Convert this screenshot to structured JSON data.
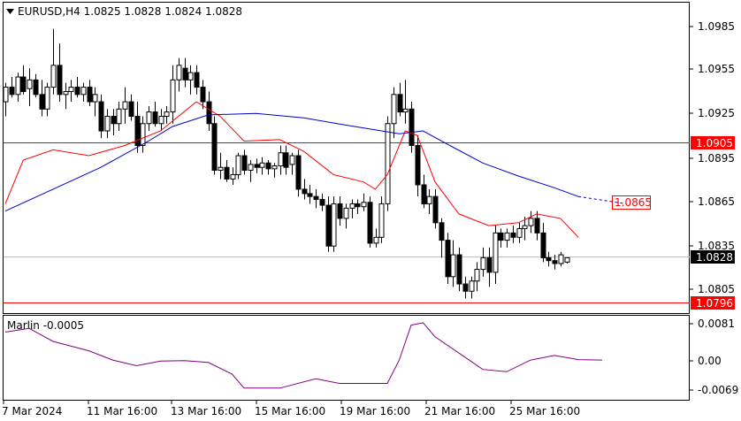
{
  "header": {
    "marker_icon": "triangle-down-icon",
    "text": "EURUSD,H4  1.0825 1.0828 1.0824 1.0828"
  },
  "price_axis": [
    "1.0985",
    "1.0955",
    "1.0925",
    "1.0895",
    "1.0865",
    "1.0835",
    "1.0805"
  ],
  "time_axis": [
    "7 Mar 2024",
    "11 Mar 16:00",
    "13 Mar 16:00",
    "15 Mar 16:00",
    "19 Mar 16:00",
    "21 Mar 16:00",
    "25 Mar 16:00"
  ],
  "levels": {
    "resistance": {
      "label": "1.0905",
      "value": 1.0905,
      "color": "#ff0000"
    },
    "support": {
      "label": "1.0796",
      "value": 1.0796,
      "color": "#ff0000"
    },
    "target": {
      "label": "1.0865",
      "value": 1.0865,
      "color": "#ff0000"
    },
    "current": {
      "label": "1.0828",
      "value": 1.0828,
      "color": "#000000"
    }
  },
  "indicator": {
    "title": "Marlin -0.0005",
    "axis": [
      "0.0081",
      "0.00",
      "-0.0069"
    ],
    "color": "#800080"
  },
  "chart_data": {
    "type": "candlestick",
    "symbol": "EURUSD",
    "timeframe": "H4",
    "ylim": [
      1.079,
      1.1003
    ],
    "candles": [
      [
        1.0935,
        1.0948,
        1.0925,
        1.0945
      ],
      [
        1.0945,
        1.0952,
        1.0938,
        1.094
      ],
      [
        1.094,
        1.0955,
        1.0935,
        1.0952
      ],
      [
        1.0952,
        1.096,
        1.094,
        1.0942
      ],
      [
        1.0944,
        1.0958,
        1.0932,
        1.095
      ],
      [
        1.095,
        1.0954,
        1.0938,
        1.094
      ],
      [
        1.094,
        1.095,
        1.0925,
        1.093
      ],
      [
        1.093,
        1.0948,
        1.0925,
        1.0945
      ],
      [
        1.0945,
        1.0985,
        1.094,
        1.096
      ],
      [
        1.096,
        1.0975,
        1.0935,
        1.094
      ],
      [
        1.094,
        1.0948,
        1.093,
        1.0942
      ],
      [
        1.0942,
        1.095,
        1.0935,
        1.0945
      ],
      [
        1.0945,
        1.0952,
        1.0938,
        1.094
      ],
      [
        1.094,
        1.0948,
        1.0935,
        1.0945
      ],
      [
        1.0945,
        1.095,
        1.0932,
        1.0935
      ],
      [
        1.0935,
        1.0945,
        1.0925,
        1.094
      ],
      [
        1.0935,
        1.094,
        1.091,
        1.0915
      ],
      [
        1.0915,
        1.093,
        1.091,
        1.0925
      ],
      [
        1.0925,
        1.093,
        1.0912,
        1.092
      ],
      [
        1.092,
        1.0935,
        1.0915,
        1.093
      ],
      [
        1.093,
        1.0945,
        1.092,
        1.0935
      ],
      [
        1.0935,
        1.094,
        1.0922,
        1.0925
      ],
      [
        1.0925,
        1.0935,
        1.09,
        1.0905
      ],
      [
        1.0905,
        1.0925,
        1.09,
        1.092
      ],
      [
        1.092,
        1.0932,
        1.0915,
        1.0928
      ],
      [
        1.0928,
        1.0935,
        1.0918,
        1.092
      ],
      [
        1.092,
        1.093,
        1.0915,
        1.0925
      ],
      [
        1.0925,
        1.0932,
        1.092,
        1.0928
      ],
      [
        1.0928,
        1.096,
        1.092,
        1.095
      ],
      [
        1.095,
        1.0965,
        1.0942,
        1.096
      ],
      [
        1.0958,
        1.0965,
        1.0945,
        1.095
      ],
      [
        1.095,
        1.096,
        1.094,
        1.0955
      ],
      [
        1.0955,
        1.096,
        1.094,
        1.0945
      ],
      [
        1.0945,
        1.095,
        1.093,
        1.0935
      ],
      [
        1.0935,
        1.0942,
        1.0915,
        1.092
      ],
      [
        1.092,
        1.0925,
        1.0885,
        1.0888
      ],
      [
        1.0888,
        1.09,
        1.0882,
        1.089
      ],
      [
        1.089,
        1.0895,
        1.088,
        1.0882
      ],
      [
        1.0882,
        1.089,
        1.0878,
        1.0885
      ],
      [
        1.0885,
        1.09,
        1.0882,
        1.0898
      ],
      [
        1.0898,
        1.0902,
        1.0885,
        1.0888
      ],
      [
        1.0888,
        1.0895,
        1.088,
        1.0892
      ],
      [
        1.0892,
        1.0896,
        1.0886,
        1.089
      ],
      [
        1.089,
        1.0897,
        1.0885,
        1.0893
      ],
      [
        1.0893,
        1.0895,
        1.0885,
        1.0889
      ],
      [
        1.0889,
        1.0893,
        1.0883,
        1.0891
      ],
      [
        1.0891,
        1.0905,
        1.0885,
        1.09
      ],
      [
        1.09,
        1.0905,
        1.0885,
        1.089
      ],
      [
        1.0892,
        1.09,
        1.0885,
        1.0898
      ],
      [
        1.0898,
        1.0902,
        1.087,
        1.0875
      ],
      [
        1.0875,
        1.0882,
        1.0868,
        1.0872
      ],
      [
        1.0872,
        1.0878,
        1.0865,
        1.087
      ],
      [
        1.087,
        1.0875,
        1.0862,
        1.0868
      ],
      [
        1.0868,
        1.0872,
        1.086,
        1.0864
      ],
      [
        1.0864,
        1.087,
        1.0832,
        1.0836
      ],
      [
        1.0836,
        1.087,
        1.0832,
        1.0865
      ],
      [
        1.0865,
        1.087,
        1.085,
        1.0855
      ],
      [
        1.0855,
        1.0865,
        1.0848,
        1.0862
      ],
      [
        1.0862,
        1.0868,
        1.0855,
        1.0865
      ],
      [
        1.0865,
        1.0868,
        1.0858,
        1.0863
      ],
      [
        1.0863,
        1.0872,
        1.086,
        1.0866
      ],
      [
        1.0866,
        1.087,
        1.0835,
        1.0838
      ],
      [
        1.0838,
        1.0848,
        1.0835,
        1.0842
      ],
      [
        1.0842,
        1.087,
        1.0838,
        1.0865
      ],
      [
        1.0865,
        1.0925,
        1.086,
        1.092
      ],
      [
        1.092,
        1.0945,
        1.091,
        1.094
      ],
      [
        1.094,
        1.0948,
        1.0925,
        1.0928
      ],
      [
        1.0928,
        1.095,
        1.092,
        1.093
      ],
      [
        1.093,
        1.0935,
        1.09,
        1.0905
      ],
      [
        1.0905,
        1.0912,
        1.087,
        1.0878
      ],
      [
        1.0878,
        1.0885,
        1.0862,
        1.0865
      ],
      [
        1.0865,
        1.0875,
        1.0858,
        1.087
      ],
      [
        1.087,
        1.0875,
        1.0848,
        1.0852
      ],
      [
        1.0852,
        1.0855,
        1.0828,
        1.084
      ],
      [
        1.084,
        1.0845,
        1.081,
        1.0815
      ],
      [
        1.0815,
        1.084,
        1.0808,
        1.083
      ],
      [
        1.083,
        1.0835,
        1.0805,
        1.081
      ],
      [
        1.081,
        1.0815,
        1.08,
        1.0805
      ],
      [
        1.0805,
        1.0815,
        1.08,
        1.0812
      ],
      [
        1.0812,
        1.0825,
        1.0805,
        1.082
      ],
      [
        1.082,
        1.0835,
        1.0815,
        1.0828
      ],
      [
        1.0828,
        1.0835,
        1.0808,
        1.0818
      ],
      [
        1.0818,
        1.085,
        1.081,
        1.0845
      ],
      [
        1.0845,
        1.0848,
        1.0835,
        1.084
      ],
      [
        1.084,
        1.0848,
        1.0835,
        1.0845
      ],
      [
        1.0845,
        1.085,
        1.0838,
        1.0842
      ],
      [
        1.0842,
        1.0852,
        1.0838,
        1.0848
      ],
      [
        1.0848,
        1.0856,
        1.084,
        1.085
      ],
      [
        1.085,
        1.086,
        1.0845,
        1.0855
      ],
      [
        1.0855,
        1.086,
        1.084,
        1.0845
      ],
      [
        1.0845,
        1.0852,
        1.0825,
        1.0828
      ],
      [
        1.0828,
        1.0832,
        1.0822,
        1.0826
      ],
      [
        1.0826,
        1.083,
        1.082,
        1.0824
      ],
      [
        1.0824,
        1.0832,
        1.0822,
        1.083
      ],
      [
        1.0825,
        1.0828,
        1.0824,
        1.0828
      ]
    ],
    "ma_fast": {
      "color": "#ff0000",
      "points": [
        [
          0,
          1.0865
        ],
        [
          3,
          1.0895
        ],
        [
          8,
          1.0902
        ],
        [
          14,
          1.0898
        ],
        [
          20,
          1.0905
        ],
        [
          26,
          1.0915
        ],
        [
          32,
          1.0935
        ],
        [
          36,
          1.0925
        ],
        [
          40,
          1.0908
        ],
        [
          46,
          1.0909
        ],
        [
          50,
          1.0901
        ],
        [
          55,
          1.0885
        ],
        [
          60,
          1.088
        ],
        [
          62,
          1.0875
        ],
        [
          64,
          1.0885
        ],
        [
          67,
          1.0915
        ],
        [
          69,
          1.0912
        ],
        [
          72,
          1.088
        ],
        [
          76,
          1.0858
        ],
        [
          81,
          1.085
        ],
        [
          86,
          1.0852
        ],
        [
          89,
          1.0858
        ],
        [
          93,
          1.0855
        ],
        [
          96,
          1.0842
        ]
      ]
    },
    "ma_slow": {
      "color": "#0000cd",
      "points": [
        [
          0,
          1.086
        ],
        [
          8,
          1.0875
        ],
        [
          16,
          1.089
        ],
        [
          24,
          1.0908
        ],
        [
          28,
          1.0918
        ],
        [
          34,
          1.0926
        ],
        [
          42,
          1.0927
        ],
        [
          50,
          1.0924
        ],
        [
          57,
          1.0919
        ],
        [
          66,
          1.0913
        ],
        [
          70,
          1.0915
        ],
        [
          74,
          1.0906
        ],
        [
          80,
          1.0893
        ],
        [
          86,
          1.0884
        ],
        [
          92,
          1.0876
        ],
        [
          96,
          1.087
        ],
        [
          104,
          1.0865
        ]
      ],
      "projected_from_index": 96
    },
    "marlin": {
      "ylim": [
        -0.0085,
        0.0095
      ],
      "points": [
        [
          0,
          0.006
        ],
        [
          4,
          0.0068
        ],
        [
          8,
          0.004
        ],
        [
          14,
          0.002
        ],
        [
          18,
          0.0
        ],
        [
          22,
          -0.0012
        ],
        [
          26,
          -0.0002
        ],
        [
          30,
          -0.0001
        ],
        [
          34,
          -0.0005
        ],
        [
          38,
          -0.003
        ],
        [
          40,
          -0.006
        ],
        [
          46,
          -0.006
        ],
        [
          52,
          -0.004
        ],
        [
          56,
          -0.005
        ],
        [
          60,
          -0.005
        ],
        [
          64,
          -0.005
        ],
        [
          66,
          0.0
        ],
        [
          68,
          0.0075
        ],
        [
          70,
          0.008
        ],
        [
          72,
          0.005
        ],
        [
          76,
          0.0015
        ],
        [
          80,
          -0.002
        ],
        [
          84,
          -0.0025
        ],
        [
          88,
          0.0
        ],
        [
          92,
          0.001
        ],
        [
          96,
          0.0001
        ],
        [
          100,
          0.0
        ]
      ]
    }
  }
}
